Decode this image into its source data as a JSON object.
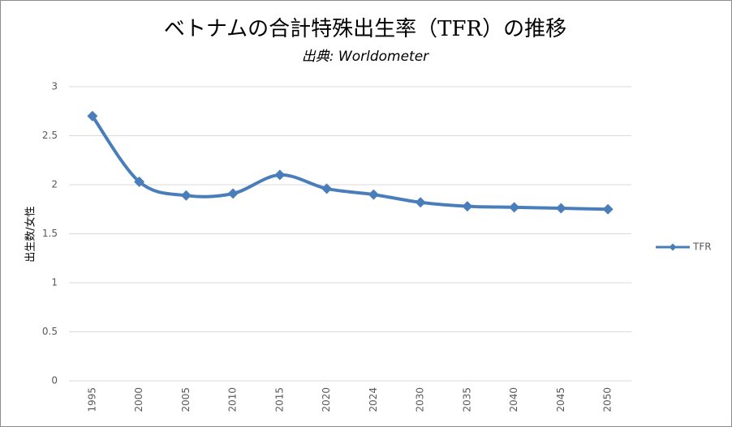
{
  "chart_data": {
    "type": "line",
    "title": "ベトナムの合計特殊出生率（TFR）の推移",
    "subtitle": "出典: Worldometer",
    "y_label": "出生数/女性",
    "categories": [
      "1995",
      "2000",
      "2005",
      "2010",
      "2015",
      "2020",
      "2024",
      "2030",
      "2035",
      "2040",
      "2045",
      "2050"
    ],
    "series": [
      {
        "name": "TFR",
        "color": "#4a7ebb",
        "values": [
          2.7,
          2.03,
          1.89,
          1.91,
          2.1,
          1.96,
          1.9,
          1.82,
          1.78,
          1.77,
          1.76,
          1.75
        ]
      }
    ],
    "ylim": [
      0,
      3
    ],
    "yticks": [
      0,
      0.5,
      1,
      1.5,
      2,
      2.5,
      3
    ],
    "grid": true,
    "legend": "right",
    "smooth": true
  }
}
